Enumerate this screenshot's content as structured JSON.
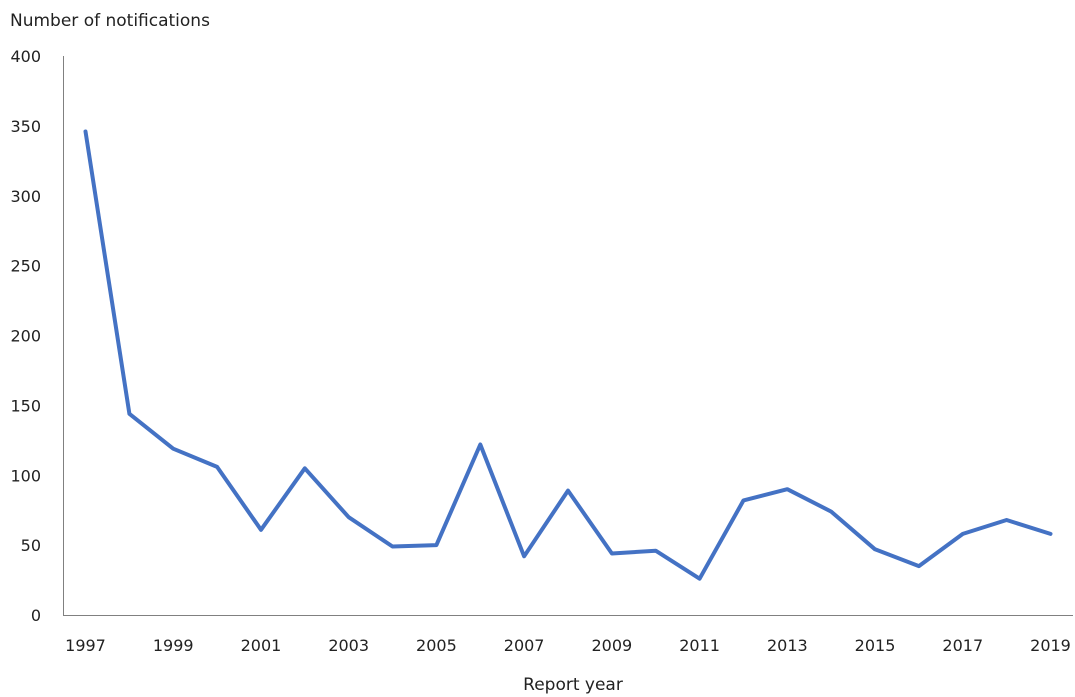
{
  "chart_data": {
    "type": "line",
    "title": "",
    "ylabel": "Number of notifications",
    "xlabel": "Report year",
    "ylim": [
      0,
      400
    ],
    "yticks": [
      0,
      50,
      100,
      150,
      200,
      250,
      300,
      350,
      400
    ],
    "xtick_labels": [
      "1997",
      "1999",
      "2001",
      "2003",
      "2005",
      "2007",
      "2009",
      "2011",
      "2013",
      "2015",
      "2017",
      "2019"
    ],
    "grid": false,
    "legend": "none",
    "x": [
      1997,
      1998,
      1999,
      2000,
      2001,
      2002,
      2003,
      2004,
      2005,
      2006,
      2007,
      2008,
      2009,
      2010,
      2011,
      2012,
      2013,
      2014,
      2015,
      2016,
      2017,
      2018,
      2019
    ],
    "series": [
      {
        "color": "#4472C4",
        "values": [
          346,
          144,
          119,
          106,
          61,
          105,
          70,
          49,
          50,
          122,
          42,
          89,
          44,
          46,
          26,
          82,
          90,
          74,
          47,
          35,
          58,
          68,
          58
        ]
      }
    ]
  }
}
